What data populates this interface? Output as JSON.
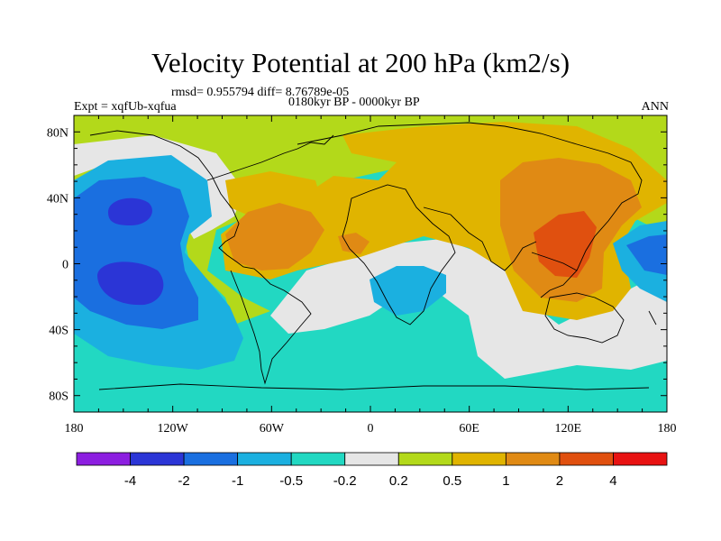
{
  "header": {
    "title": "Velocity Potential at 200 hPa (km2/s)",
    "stats": "rmsd= 0.955794 diff= 8.76789e-05",
    "expt": "Expt = xqfUb-xqfua",
    "period": "0180kyr BP - 0000kyr BP",
    "season": "ANN"
  },
  "axes": {
    "x_ticks": [
      {
        "lon": -180,
        "label": "180"
      },
      {
        "lon": -120,
        "label": "120W"
      },
      {
        "lon": -60,
        "label": "60W"
      },
      {
        "lon": 0,
        "label": "0"
      },
      {
        "lon": 60,
        "label": "60E"
      },
      {
        "lon": 120,
        "label": "120E"
      },
      {
        "lon": 180,
        "label": "180"
      }
    ],
    "y_ticks": [
      {
        "lat": 80,
        "label": "80N"
      },
      {
        "lat": 40,
        "label": "40N"
      },
      {
        "lat": 0,
        "label": "0"
      },
      {
        "lat": -40,
        "label": "40S"
      },
      {
        "lat": -80,
        "label": "80S"
      }
    ]
  },
  "colorbar": {
    "colors": [
      "#8c1ee0",
      "#2b35d6",
      "#1a6fe0",
      "#1bb0e0",
      "#22d8c2",
      "#e6e6e6",
      "#b3d91a",
      "#e0b400",
      "#e08a14",
      "#e0500f",
      "#e81212"
    ],
    "labels": [
      "-4",
      "-2",
      "-1",
      "-0.5",
      "-0.2",
      "0.2",
      "0.5",
      "1",
      "2",
      "4"
    ]
  },
  "colors": {
    "teal": "#22d8c2",
    "lightblue": "#1bb0e0",
    "midblue": "#1a6fe0",
    "darkblue": "#2b35d6",
    "white": "#e6e6e6",
    "lime": "#b3d91a",
    "gold": "#e0b400",
    "orange": "#e08a14",
    "redorange": "#e0500f",
    "coast": "#000000"
  }
}
